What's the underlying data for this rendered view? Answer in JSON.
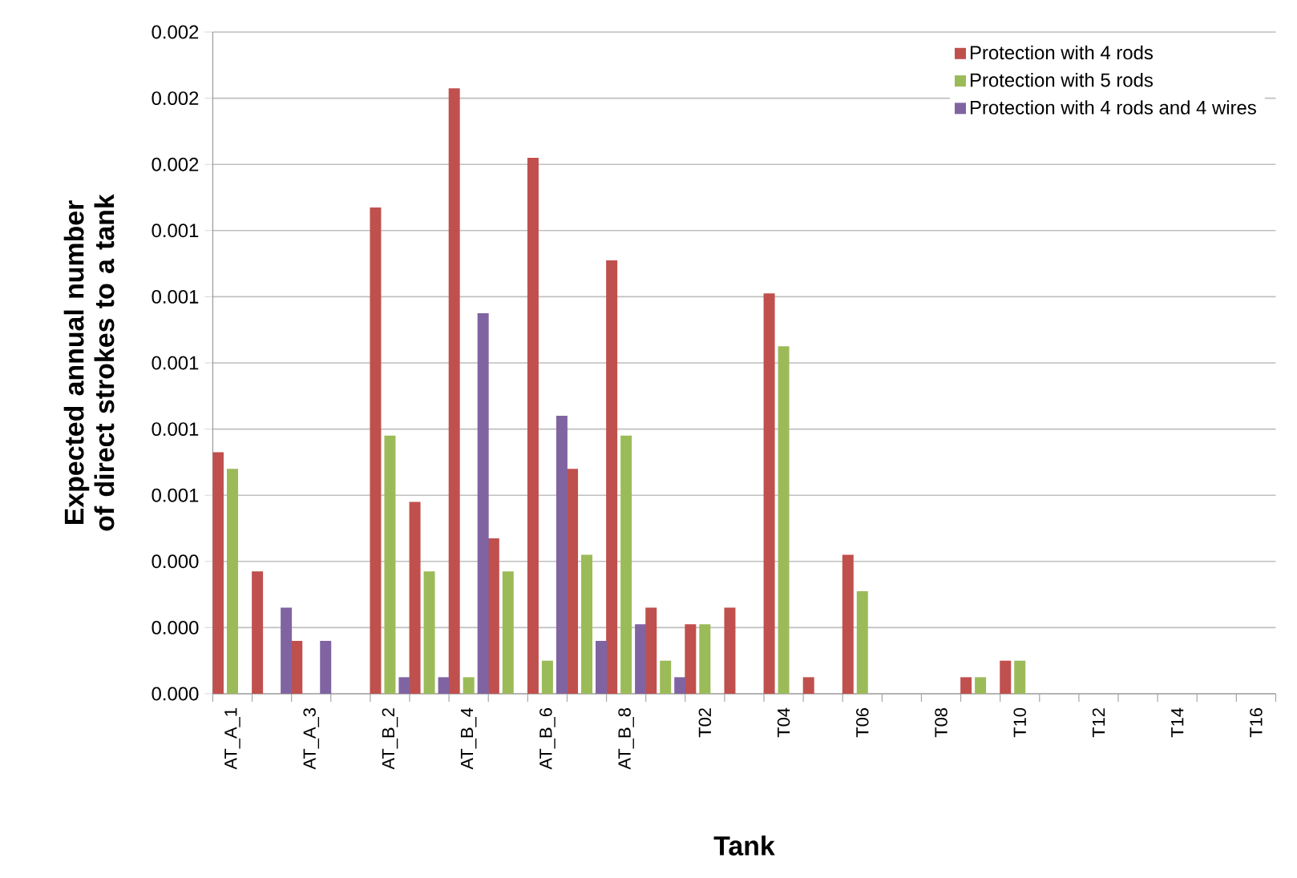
{
  "chart_data": {
    "type": "bar",
    "xlabel": "Tank",
    "ylabel": "Expected annual number of direct strokes to a tank",
    "categories": [
      "AT_A_1",
      null,
      "AT_A_3",
      null,
      "AT_B_2",
      null,
      "AT_B_4",
      null,
      "AT_B_6",
      null,
      "AT_B_8",
      null,
      "T02",
      null,
      "T04",
      null,
      "T06",
      null,
      "T08",
      null,
      "T10",
      null,
      "T12",
      null,
      "T14",
      null,
      "T16"
    ],
    "series": [
      {
        "name": "Protection with 4 rods",
        "color": "#c0504d",
        "values": [
          0.00073,
          0.00037,
          0.00016,
          null,
          0.00147,
          0.00058,
          0.00183,
          0.00047,
          0.00162,
          0.00068,
          0.00131,
          0.00026,
          0.00021,
          0.00026,
          0.00121,
          5e-05,
          0.00042,
          null,
          null,
          5e-05,
          0.0001,
          null,
          null,
          null,
          null,
          null,
          null
        ]
      },
      {
        "name": "Protection with 5 rods",
        "color": "#9bbb59",
        "values": [
          0.00068,
          null,
          null,
          null,
          0.00078,
          0.00037,
          5e-05,
          0.00037,
          0.0001,
          0.00042,
          0.00078,
          0.0001,
          0.00021,
          null,
          0.00105,
          null,
          0.00031,
          null,
          null,
          5e-05,
          0.0001,
          null,
          null,
          null,
          null,
          null,
          null
        ]
      },
      {
        "name": "Protection with 4 rods and 4 wires",
        "color": "#8064a2",
        "values": [
          null,
          0.00026,
          0.00016,
          null,
          5e-05,
          5e-05,
          0.00115,
          null,
          0.00084,
          0.00016,
          0.00021,
          5e-05,
          null,
          null,
          null,
          null,
          null,
          null,
          null,
          null,
          null,
          null,
          null,
          null,
          null,
          null,
          null
        ]
      }
    ],
    "ylim": [
      0,
      0.002
    ],
    "yticks": [
      {
        "value": 0,
        "label": "0.000"
      },
      {
        "value": 0.0002,
        "label": "0.000"
      },
      {
        "value": 0.0004,
        "label": "0.000"
      },
      {
        "value": 0.0006,
        "label": "0.001"
      },
      {
        "value": 0.0008,
        "label": "0.001"
      },
      {
        "value": 0.001,
        "label": "0.001"
      },
      {
        "value": 0.0012,
        "label": "0.001"
      },
      {
        "value": 0.0014,
        "label": "0.001"
      },
      {
        "value": 0.0016,
        "label": "0.002"
      },
      {
        "value": 0.0018,
        "label": "0.002"
      },
      {
        "value": 0.002,
        "label": "0.002"
      }
    ],
    "grid": "y",
    "legend": "top right"
  }
}
